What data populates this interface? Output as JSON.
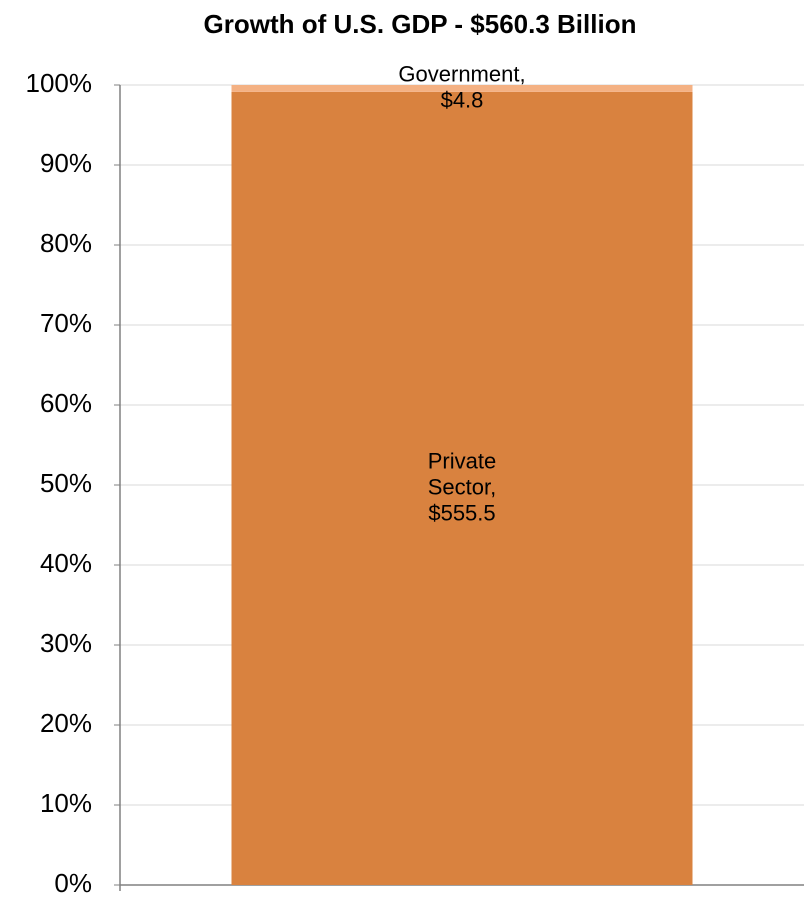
{
  "chart_data": {
    "type": "bar",
    "stacking": "percent",
    "title": "Growth of U.S. GDP - $560.3 Billion",
    "categories": [
      null
    ],
    "series": [
      {
        "color": "#d9823f",
        "values": [
          555.5
        ],
        "value_labels": [
          "Private Sector, $555.5"
        ]
      },
      {
        "color": "#f4b183",
        "values": [
          4.8
        ],
        "value_labels": [
          "Government, $4.8"
        ]
      }
    ],
    "ylim": [
      0,
      100
    ],
    "yticks": [
      {
        "value": 0,
        "label": "0%"
      },
      {
        "value": 10,
        "label": "10%"
      },
      {
        "value": 20,
        "label": "20%"
      },
      {
        "value": 30,
        "label": "30%"
      },
      {
        "value": 40,
        "label": "40%"
      },
      {
        "value": 50,
        "label": "50%"
      },
      {
        "value": 60,
        "label": "60%"
      },
      {
        "value": 70,
        "label": "70%"
      },
      {
        "value": 80,
        "label": "80%"
      },
      {
        "value": 90,
        "label": "90%"
      },
      {
        "value": 100,
        "label": "100%"
      }
    ],
    "grid": true
  }
}
